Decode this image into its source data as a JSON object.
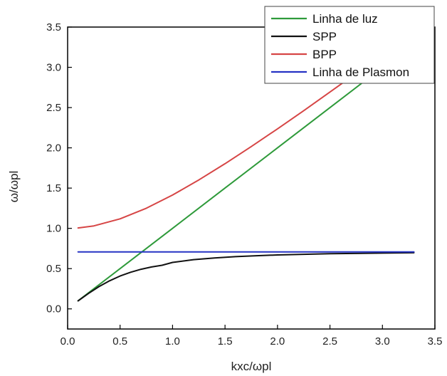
{
  "chart_data": {
    "type": "line",
    "xlabel": "kxc/ωpl",
    "ylabel": "ω/ωpl",
    "xlim": [
      0,
      3.5
    ],
    "ylim": [
      -0.25,
      3.5
    ],
    "x_ticks": [
      "0.0",
      "0.5",
      "1.0",
      "1.5",
      "2.0",
      "2.5",
      "3.0",
      "3.5"
    ],
    "y_ticks": [
      "0.0",
      "0.5",
      "1.0",
      "1.5",
      "2.0",
      "2.5",
      "3.0",
      "3.5"
    ],
    "grid": false,
    "legend_position": "top-right",
    "series": [
      {
        "name": "Linha de luz",
        "color": "#2e9a3a",
        "x": [
          0.1,
          0.5,
          1.0,
          1.5,
          2.0,
          2.5,
          2.85
        ],
        "y": [
          0.1,
          0.5,
          1.0,
          1.5,
          2.0,
          2.5,
          2.85
        ]
      },
      {
        "name": "SPP",
        "color": "#111111",
        "x": [
          0.1,
          0.2,
          0.3,
          0.4,
          0.5,
          0.6,
          0.7,
          0.8,
          0.9,
          1.0,
          1.2,
          1.4,
          1.6,
          1.8,
          2.0,
          2.5,
          3.0,
          3.3
        ],
        "y": [
          0.099,
          0.193,
          0.277,
          0.349,
          0.408,
          0.455,
          0.492,
          0.52,
          0.542,
          0.577,
          0.611,
          0.633,
          0.649,
          0.66,
          0.67,
          0.685,
          0.693,
          0.697
        ]
      },
      {
        "name": "BPP",
        "color": "#d64545",
        "x": [
          0.1,
          0.25,
          0.5,
          0.75,
          1.0,
          1.25,
          1.5,
          1.75,
          2.0,
          2.25,
          2.5,
          2.75
        ],
        "y": [
          1.005,
          1.031,
          1.118,
          1.25,
          1.414,
          1.601,
          1.803,
          2.016,
          2.236,
          2.462,
          2.693,
          2.926
        ]
      },
      {
        "name": "Linha de Plasmon",
        "color": "#2633c4",
        "x": [
          0.1,
          3.3
        ],
        "y": [
          0.707,
          0.707
        ]
      }
    ]
  }
}
